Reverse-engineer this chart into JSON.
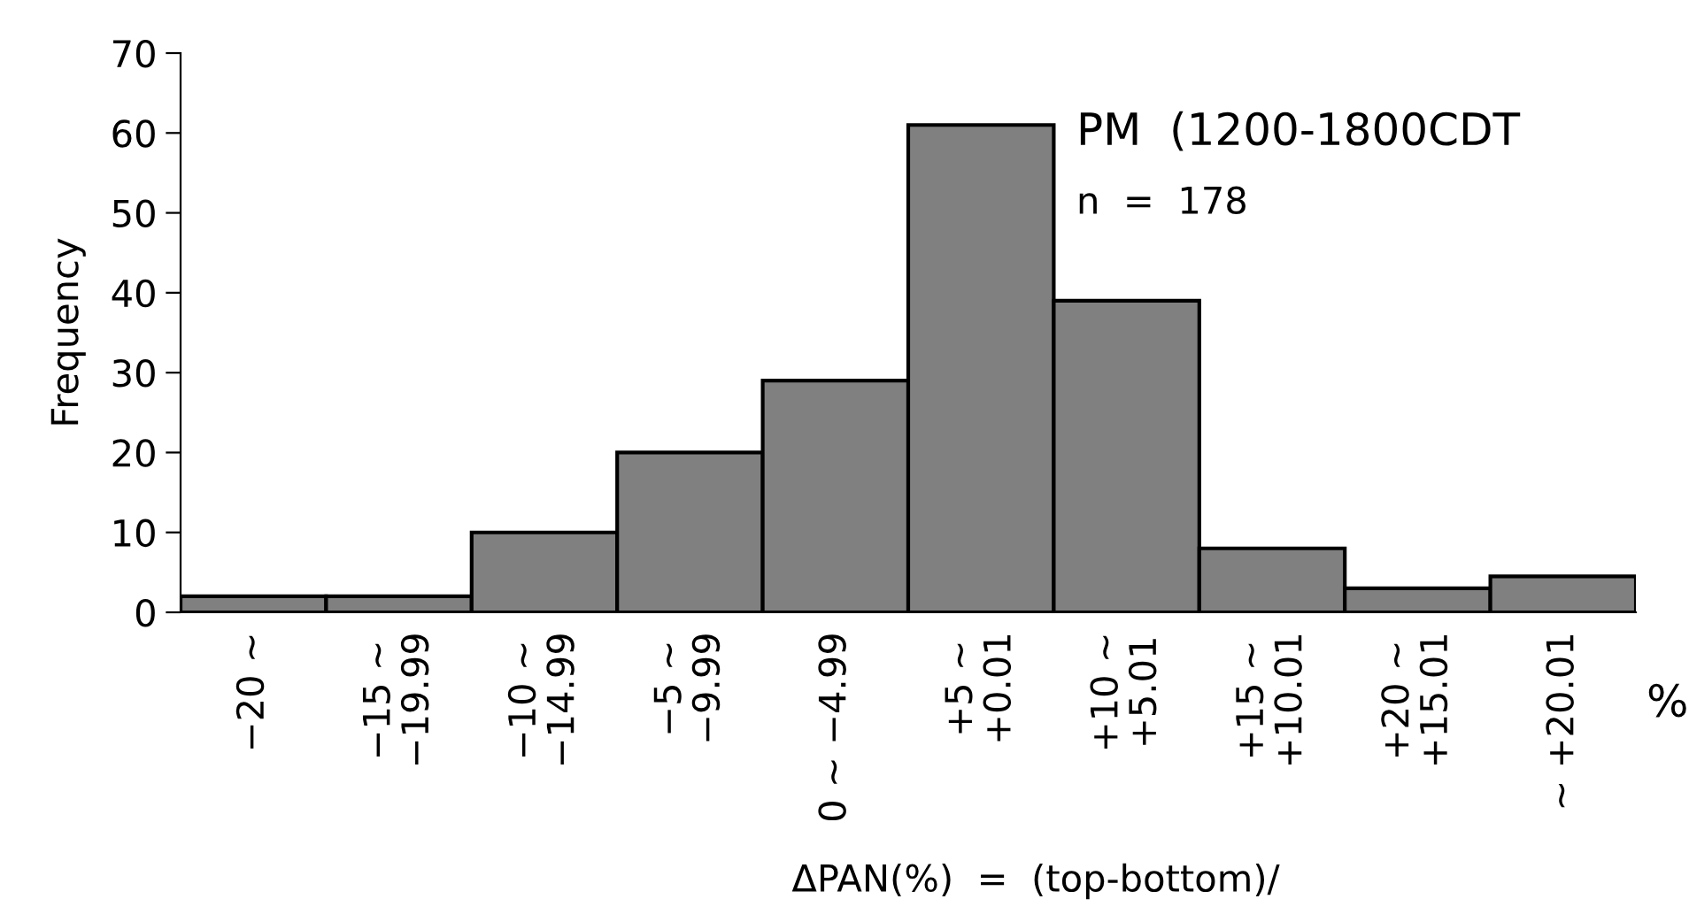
{
  "chart_data": {
    "type": "bar",
    "categories": [
      "−20 ~",
      "−15 ~\n−19.99",
      "−10 ~\n−14.99",
      "−5 ~\n−9.99",
      "0 ~ −4.99",
      "+5 ~\n+0.01",
      "+10 ~\n+5.01",
      "+15 ~\n+10.01",
      "+20 ~\n+15.01",
      "~ +20.01"
    ],
    "values": [
      2,
      2,
      10,
      20,
      29,
      61,
      39,
      8,
      3,
      4.5
    ],
    "color": "#808080",
    "ylabel": "Frequency",
    "xlabel": "ΔPAN(%)  =  (top-bottom)/",
    "annotations": [
      "PM  (1200-1800CDT",
      "n  =  178",
      "%"
    ],
    "ylim": [
      0,
      70
    ],
    "yticks": [
      0,
      10,
      20,
      30,
      40,
      50,
      60,
      70
    ],
    "grid": false,
    "legend": false
  }
}
